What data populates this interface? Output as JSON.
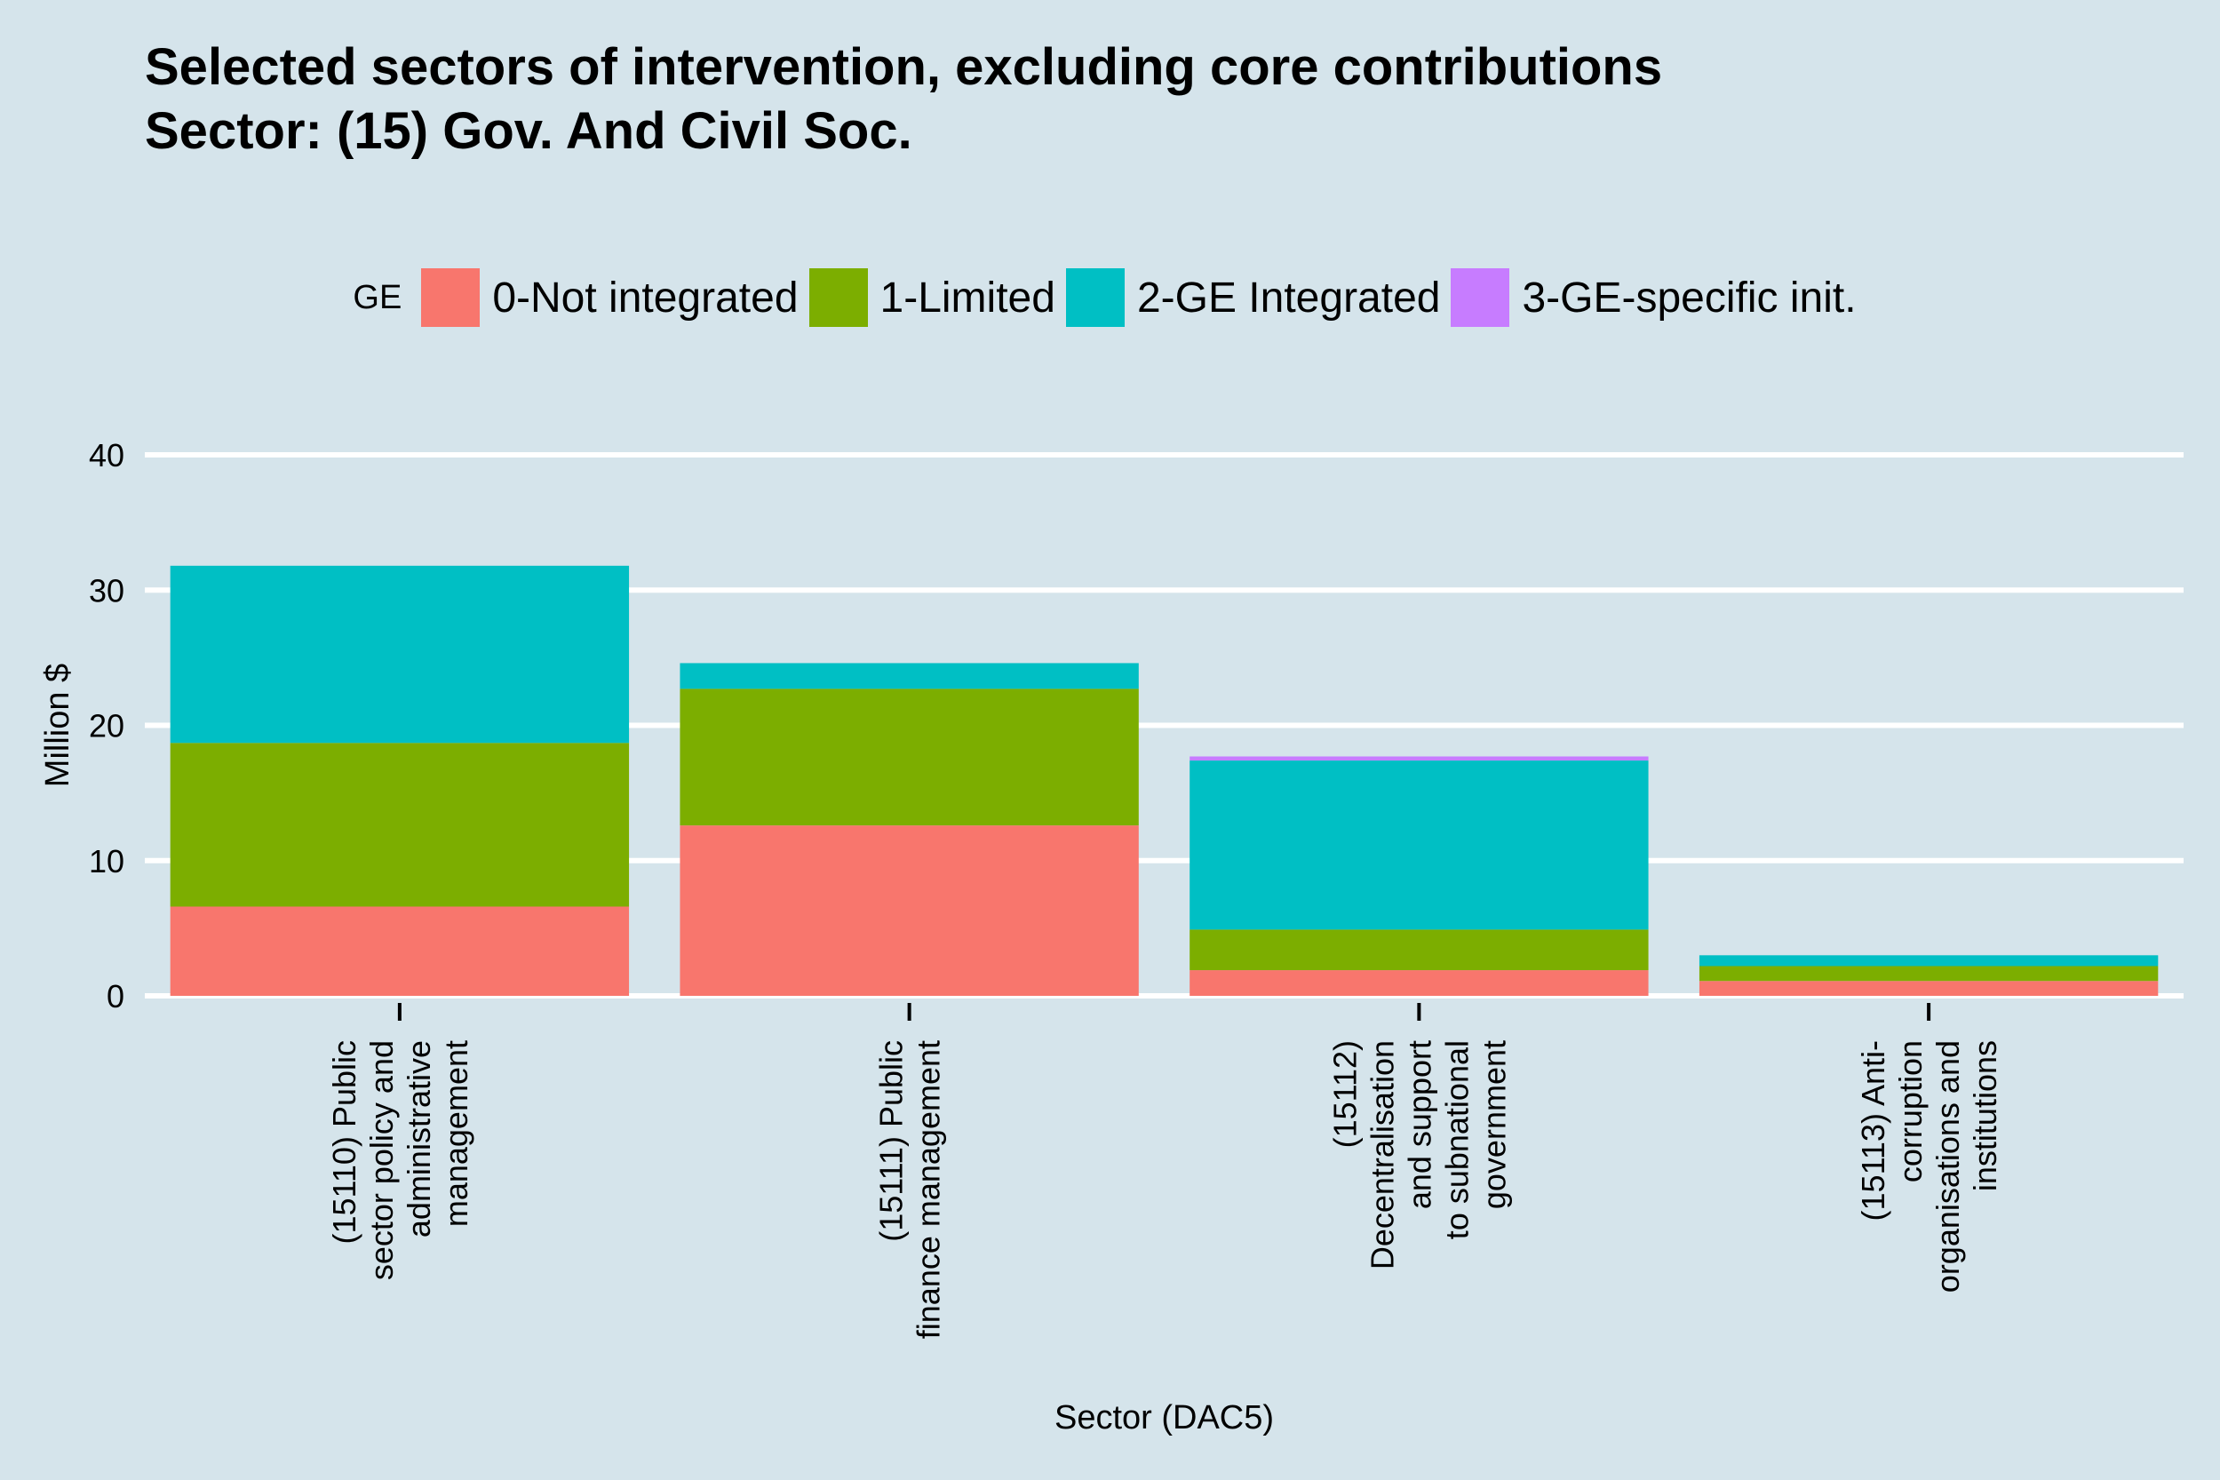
{
  "chart_data": {
    "type": "bar",
    "stacked": true,
    "title_lines": [
      "Selected sectors of intervention, excluding core contributions",
      "Sector: (15) Gov. And Civil Soc."
    ],
    "xlabel": "Sector (DAC5)",
    "ylabel": "Million $",
    "ylim": [
      0,
      40
    ],
    "yticks": [
      "0",
      "10",
      "20",
      "30",
      "40"
    ],
    "legend_title": "GE",
    "legend_position": "top",
    "categories": [
      [
        "(15110) Public",
        "sector policy and",
        "administrative",
        "management"
      ],
      [
        "(15111) Public",
        "finance management"
      ],
      [
        "(15112)",
        "Decentralisation",
        "and support",
        "to subnational",
        "government"
      ],
      [
        "(15113) Anti-",
        "corruption",
        "organisations and",
        "institutions"
      ]
    ],
    "series": [
      {
        "name": "0-Not integrated",
        "color": "#f8766d",
        "values": [
          6.6,
          12.6,
          1.9,
          1.1
        ]
      },
      {
        "name": "1-Limited",
        "color": "#7cae00",
        "values": [
          12.1,
          10.1,
          3.0,
          1.1
        ]
      },
      {
        "name": "2-GE Integrated",
        "color": "#00bfc4",
        "values": [
          13.1,
          1.9,
          12.5,
          0.8
        ]
      },
      {
        "name": "3-GE-specific init.",
        "color": "#c77cff",
        "values": [
          0.0,
          0.0,
          0.3,
          0.0
        ]
      }
    ]
  }
}
